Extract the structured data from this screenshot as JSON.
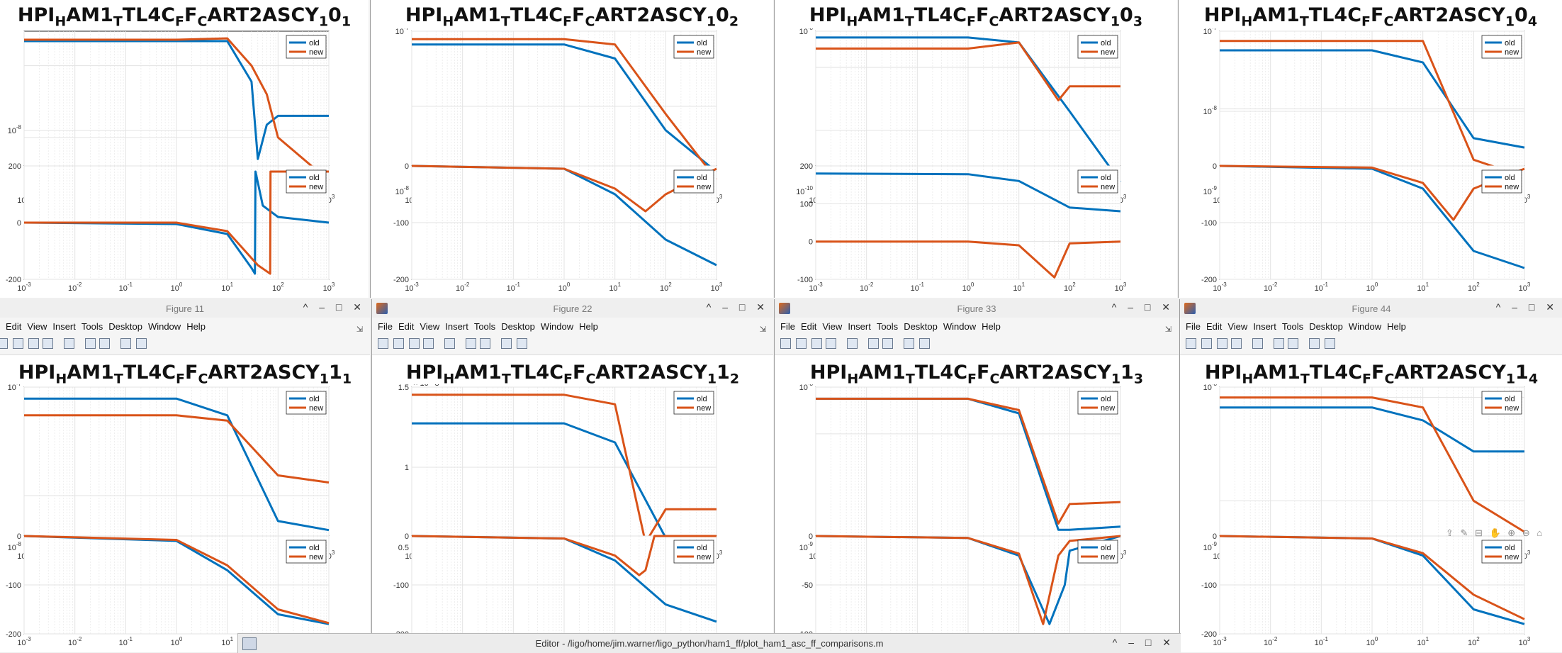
{
  "colors": {
    "old": "#0072BD",
    "new": "#D95319",
    "grid": "#e3e3e3"
  },
  "figures": [
    {
      "id": "fig-1-0",
      "title_parts": {
        "base": "HPI",
        "s1": "H",
        "p1": "AM1",
        "s2": "T",
        "p2": "TL4C",
        "s3": "F",
        "p3": "F",
        "s4": "C",
        "p4": "ART2ASCY",
        "s5": "1",
        "p5": "0",
        "s6": "1"
      },
      "titlebar": null
    },
    {
      "id": "fig-2-0",
      "title_parts": {
        "base": "HPI",
        "s1": "H",
        "p1": "AM1",
        "s2": "T",
        "p2": "TL4C",
        "s3": "F",
        "p3": "F",
        "s4": "C",
        "p4": "ART2ASCY",
        "s5": "1",
        "p5": "0",
        "s6": "2"
      },
      "titlebar": null
    },
    {
      "id": "fig-3-0",
      "title_parts": {
        "base": "HPI",
        "s1": "H",
        "p1": "AM1",
        "s2": "T",
        "p2": "TL4C",
        "s3": "F",
        "p3": "F",
        "s4": "C",
        "p4": "ART2ASCY",
        "s5": "1",
        "p5": "0",
        "s6": "3"
      },
      "titlebar": null
    },
    {
      "id": "fig-4-0",
      "title_parts": {
        "base": "HPI",
        "s1": "H",
        "p1": "AM1",
        "s2": "T",
        "p2": "TL4C",
        "s3": "F",
        "p3": "F",
        "s4": "C",
        "p4": "ART2ASCY",
        "s5": "1",
        "p5": "0",
        "s6": "4"
      },
      "titlebar": null
    },
    {
      "id": "fig-1-1",
      "title_parts": {
        "base": "HPI",
        "s1": "H",
        "p1": "AM1",
        "s2": "T",
        "p2": "TL4C",
        "s3": "F",
        "p3": "F",
        "s4": "C",
        "p4": "ART2ASCY",
        "s5": "1",
        "p5": "1",
        "s6": "1"
      },
      "titlebar": "Figure 11"
    },
    {
      "id": "fig-2-1",
      "title_parts": {
        "base": "HPI",
        "s1": "H",
        "p1": "AM1",
        "s2": "T",
        "p2": "TL4C",
        "s3": "F",
        "p3": "F",
        "s4": "C",
        "p4": "ART2ASCY",
        "s5": "1",
        "p5": "1",
        "s6": "2"
      },
      "titlebar": "Figure 22"
    },
    {
      "id": "fig-3-1",
      "title_parts": {
        "base": "HPI",
        "s1": "H",
        "p1": "AM1",
        "s2": "T",
        "p2": "TL4C",
        "s3": "F",
        "p3": "F",
        "s4": "C",
        "p4": "ART2ASCY",
        "s5": "1",
        "p5": "1",
        "s6": "3"
      },
      "titlebar": "Figure 33"
    },
    {
      "id": "fig-4-1",
      "title_parts": {
        "base": "HPI",
        "s1": "H",
        "p1": "AM1",
        "s2": "T",
        "p2": "TL4C",
        "s3": "F",
        "p3": "F",
        "s4": "C",
        "p4": "ART2ASCY",
        "s5": "1",
        "p5": "1",
        "s6": "4"
      },
      "titlebar": "Figure 44"
    }
  ],
  "menu": [
    "File",
    "Edit",
    "View",
    "Insert",
    "Tools",
    "Desktop",
    "Window",
    "Help"
  ],
  "menu_fig11": [
    "Edit",
    "View",
    "Insert",
    "Tools",
    "Desktop",
    "Window",
    "Help"
  ],
  "window_buttons": "^ – □ ✕",
  "legend": {
    "old": "old",
    "new": "new"
  },
  "x_ticks": {
    "base": "10",
    "exps": [
      "-3",
      "-2",
      "-1",
      "0",
      "1",
      "2",
      "3"
    ]
  },
  "editor": {
    "title": "Editor - /ligo/home/jim.warner/ligo_python/ham1_ff/plot_ham1_asc_ff_comparisons.m"
  },
  "axes_toolbar": "⇪ ✎ ⊟ ✋ ⊕ ⊖ ⌂",
  "chart_data": [
    {
      "type": "line",
      "panel": "magnitude",
      "figure": "fig-1-0",
      "x_scale": "log",
      "xlim": [
        0.001,
        1000
      ],
      "y_scale": "log",
      "y_ticks": [
        "10^-8"
      ],
      "series": [
        {
          "name": "old",
          "x": [
            0.001,
            1,
            10,
            30,
            40,
            60,
            100,
            1000
          ],
          "y": [
            2.2e-07,
            2.2e-07,
            2.2e-07,
            6e-08,
            5e-09,
            1.5e-08,
            2e-08,
            2e-08
          ]
        },
        {
          "name": "new",
          "x": [
            0.001,
            1,
            10,
            30,
            60,
            100,
            1000
          ],
          "y": [
            2.3e-07,
            2.3e-07,
            2.4e-07,
            1e-07,
            4e-08,
            1e-08,
            2.5e-09
          ]
        }
      ]
    },
    {
      "type": "line",
      "panel": "phase",
      "figure": "fig-1-0",
      "x_scale": "log",
      "xlim": [
        0.001,
        1000
      ],
      "ylim": [
        -200,
        200
      ],
      "y_ticks": [
        "200",
        "0",
        "-200"
      ],
      "series": [
        {
          "name": "old",
          "x": [
            0.001,
            1,
            10,
            30,
            35,
            36,
            50,
            100,
            1000
          ],
          "y": [
            0,
            -5,
            -40,
            -160,
            -180,
            180,
            60,
            20,
            0
          ]
        },
        {
          "name": "new",
          "x": [
            0.001,
            1,
            10,
            40,
            70,
            71,
            1000
          ],
          "y": [
            0,
            0,
            -30,
            -150,
            -180,
            180,
            180
          ]
        }
      ]
    },
    {
      "type": "line",
      "panel": "magnitude",
      "figure": "fig-2-0",
      "x_scale": "log",
      "xlim": [
        0.001,
        1000
      ],
      "y_scale": "log",
      "y_ticks": [
        "10^-7",
        "10^-8"
      ],
      "series": [
        {
          "name": "old",
          "x": [
            0.001,
            1,
            10,
            100,
            1000
          ],
          "y": [
            6e-08,
            6e-08,
            4e-08,
            5e-09,
            1.5e-09
          ]
        },
        {
          "name": "new",
          "x": [
            0.001,
            1,
            10,
            100,
            1000
          ],
          "y": [
            7e-08,
            7e-08,
            6e-08,
            8e-09,
            1.2e-09
          ]
        }
      ]
    },
    {
      "type": "line",
      "panel": "phase",
      "figure": "fig-2-0",
      "x_scale": "log",
      "xlim": [
        0.001,
        1000
      ],
      "ylim": [
        -200,
        0
      ],
      "y_ticks": [
        "0",
        "-100",
        "-200"
      ],
      "series": [
        {
          "name": "old",
          "x": [
            0.001,
            1,
            10,
            100,
            1000
          ],
          "y": [
            0,
            -5,
            -50,
            -130,
            -175
          ]
        },
        {
          "name": "new",
          "x": [
            0.001,
            1,
            10,
            40,
            100,
            1000
          ],
          "y": [
            0,
            -5,
            -40,
            -80,
            -50,
            -5
          ]
        }
      ]
    },
    {
      "type": "line",
      "panel": "magnitude",
      "figure": "fig-3-0",
      "x_scale": "log",
      "xlim": [
        0.001,
        1000
      ],
      "y_scale": "log",
      "y_ticks": [
        "10^-8",
        "10^-10"
      ],
      "series": [
        {
          "name": "old",
          "x": [
            0.001,
            1,
            10,
            100,
            1000
          ],
          "y": [
            3e-08,
            3e-08,
            2.5e-08,
            2e-09,
            1.5e-10
          ]
        },
        {
          "name": "new",
          "x": [
            0.001,
            1,
            10,
            60,
            100,
            1000
          ],
          "y": [
            2e-08,
            2e-08,
            2.5e-08,
            3e-09,
            5e-09,
            5e-09
          ]
        }
      ]
    },
    {
      "type": "line",
      "panel": "phase",
      "figure": "fig-3-0",
      "x_scale": "log",
      "xlim": [
        0.001,
        1000
      ],
      "ylim": [
        -100,
        200
      ],
      "y_ticks": [
        "200",
        "100",
        "0",
        "-100"
      ],
      "series": [
        {
          "name": "old",
          "x": [
            0.001,
            1,
            10,
            100,
            1000
          ],
          "y": [
            180,
            178,
            160,
            90,
            80
          ]
        },
        {
          "name": "new",
          "x": [
            0.001,
            1,
            10,
            50,
            100,
            1000
          ],
          "y": [
            0,
            0,
            -10,
            -95,
            -5,
            0
          ]
        }
      ]
    },
    {
      "type": "line",
      "panel": "magnitude",
      "figure": "fig-4-0",
      "x_scale": "log",
      "xlim": [
        0.001,
        1000
      ],
      "y_scale": "log",
      "y_ticks": [
        "10^-7",
        "10^-8",
        "10^-9"
      ],
      "series": [
        {
          "name": "old",
          "x": [
            0.001,
            1,
            10,
            100,
            1000
          ],
          "y": [
            4e-08,
            4e-08,
            3e-08,
            5e-09,
            4e-09
          ]
        },
        {
          "name": "new",
          "x": [
            0.001,
            1,
            10,
            100,
            1000
          ],
          "y": [
            5e-08,
            5e-08,
            5e-08,
            3e-09,
            2e-09
          ]
        }
      ]
    },
    {
      "type": "line",
      "panel": "phase",
      "figure": "fig-4-0",
      "x_scale": "log",
      "xlim": [
        0.001,
        1000
      ],
      "ylim": [
        -200,
        0
      ],
      "y_ticks": [
        "0",
        "-100",
        "-200"
      ],
      "series": [
        {
          "name": "old",
          "x": [
            0.001,
            1,
            10,
            100,
            1000
          ],
          "y": [
            0,
            -5,
            -40,
            -150,
            -180
          ]
        },
        {
          "name": "new",
          "x": [
            0.001,
            1,
            10,
            40,
            100,
            1000
          ],
          "y": [
            0,
            -3,
            -30,
            -95,
            -40,
            -5
          ]
        }
      ]
    },
    {
      "type": "line",
      "panel": "magnitude",
      "figure": "fig-1-1",
      "x_scale": "log",
      "xlim": [
        0.001,
        1000
      ],
      "y_scale": "log",
      "y_ticks": [
        "10^-7",
        "10^-8"
      ],
      "series": [
        {
          "name": "old",
          "x": [
            0.001,
            1,
            10,
            100,
            1000
          ],
          "y": [
            7e-08,
            7e-08,
            5e-08,
            6e-09,
            5e-09
          ]
        },
        {
          "name": "new",
          "x": [
            0.001,
            1,
            10,
            100,
            1000
          ],
          "y": [
            5e-08,
            5e-08,
            4.5e-08,
            1.5e-08,
            1.3e-08
          ]
        }
      ]
    },
    {
      "type": "line",
      "panel": "phase",
      "figure": "fig-1-1",
      "x_scale": "log",
      "xlim": [
        0.001,
        1000
      ],
      "ylim": [
        -200,
        0
      ],
      "y_ticks": [
        "0",
        "-100",
        "-200"
      ],
      "series": [
        {
          "name": "old",
          "x": [
            0.001,
            1,
            10,
            100,
            1000
          ],
          "y": [
            0,
            -10,
            -70,
            -160,
            -180
          ]
        },
        {
          "name": "new",
          "x": [
            0.001,
            1,
            10,
            100,
            1000
          ],
          "y": [
            0,
            -8,
            -60,
            -150,
            -178
          ]
        }
      ]
    },
    {
      "type": "line",
      "panel": "magnitude",
      "figure": "fig-2-1",
      "x_scale": "log",
      "xlim": [
        0.001,
        1000
      ],
      "y_ticks": [
        "1.5",
        "1",
        "0.5"
      ],
      "y_exponent": "× 10^-8",
      "series": [
        {
          "name": "old",
          "x": [
            0.001,
            1,
            10,
            100,
            1000
          ],
          "y": [
            1.3,
            1.3,
            1.1,
            0.1,
            0.05
          ]
        },
        {
          "name": "new",
          "x": [
            0.001,
            1,
            10,
            40,
            100,
            1000
          ],
          "y": [
            1.6,
            1.6,
            1.5,
            0.05,
            0.4,
            0.4
          ]
        }
      ]
    },
    {
      "type": "line",
      "panel": "phase",
      "figure": "fig-2-1",
      "x_scale": "log",
      "xlim": [
        0.001,
        1000
      ],
      "ylim": [
        -200,
        0
      ],
      "y_ticks": [
        "0",
        "-100",
        "-200"
      ],
      "series": [
        {
          "name": "old",
          "x": [
            0.001,
            1,
            10,
            100,
            1000
          ],
          "y": [
            0,
            -5,
            -50,
            -140,
            -175
          ]
        },
        {
          "name": "new",
          "x": [
            0.001,
            1,
            10,
            30,
            40,
            60,
            1000
          ],
          "y": [
            0,
            -5,
            -40,
            -80,
            -70,
            0,
            0
          ]
        }
      ]
    },
    {
      "type": "line",
      "panel": "magnitude",
      "figure": "fig-3-1",
      "x_scale": "log",
      "xlim": [
        0.001,
        1000
      ],
      "y_scale": "log",
      "y_ticks": [
        "10^-8",
        "10^-9"
      ],
      "series": [
        {
          "name": "old",
          "x": [
            0.001,
            1,
            10,
            60,
            100,
            1000
          ],
          "y": [
            2e-08,
            2e-08,
            1.5e-08,
            1.5e-09,
            1.5e-09,
            1.6e-09
          ]
        },
        {
          "name": "new",
          "x": [
            0.001,
            1,
            10,
            60,
            100,
            1000
          ],
          "y": [
            2e-08,
            2e-08,
            1.6e-08,
            1.7e-09,
            2.5e-09,
            2.6e-09
          ]
        }
      ]
    },
    {
      "type": "line",
      "panel": "phase",
      "figure": "fig-3-1",
      "x_scale": "log",
      "xlim": [
        0.001,
        1000
      ],
      "ylim": [
        -100,
        0
      ],
      "y_ticks": [
        "0",
        "-50",
        "-100"
      ],
      "series": [
        {
          "name": "old",
          "x": [
            0.001,
            1,
            10,
            40,
            80,
            100,
            1000
          ],
          "y": [
            0,
            -2,
            -20,
            -90,
            -50,
            -15,
            0
          ]
        },
        {
          "name": "new",
          "x": [
            0.001,
            1,
            10,
            30,
            60,
            100,
            1000
          ],
          "y": [
            0,
            -2,
            -18,
            -90,
            -20,
            -5,
            0
          ]
        }
      ]
    },
    {
      "type": "line",
      "panel": "magnitude",
      "figure": "fig-4-1",
      "x_scale": "log",
      "xlim": [
        0.001,
        1000
      ],
      "y_scale": "log",
      "y_ticks": [
        "10^-8",
        "10^-9"
      ],
      "series": [
        {
          "name": "old",
          "x": [
            0.001,
            1,
            10,
            100,
            1000
          ],
          "y": [
            8e-09,
            8e-09,
            6e-09,
            3e-09,
            3e-09
          ]
        },
        {
          "name": "new",
          "x": [
            0.001,
            1,
            10,
            100,
            1000
          ],
          "y": [
            1e-08,
            1e-08,
            8e-09,
            1e-09,
            5e-10
          ]
        }
      ]
    },
    {
      "type": "line",
      "panel": "phase",
      "figure": "fig-4-1",
      "x_scale": "log",
      "xlim": [
        0.001,
        1000
      ],
      "ylim": [
        -200,
        0
      ],
      "y_ticks": [
        "0",
        "-100",
        "-200"
      ],
      "series": [
        {
          "name": "old",
          "x": [
            0.001,
            1,
            10,
            100,
            1000
          ],
          "y": [
            0,
            -5,
            -40,
            -150,
            -180
          ]
        },
        {
          "name": "new",
          "x": [
            0.001,
            1,
            10,
            100,
            1000
          ],
          "y": [
            0,
            -5,
            -35,
            -120,
            -170
          ]
        }
      ]
    }
  ]
}
